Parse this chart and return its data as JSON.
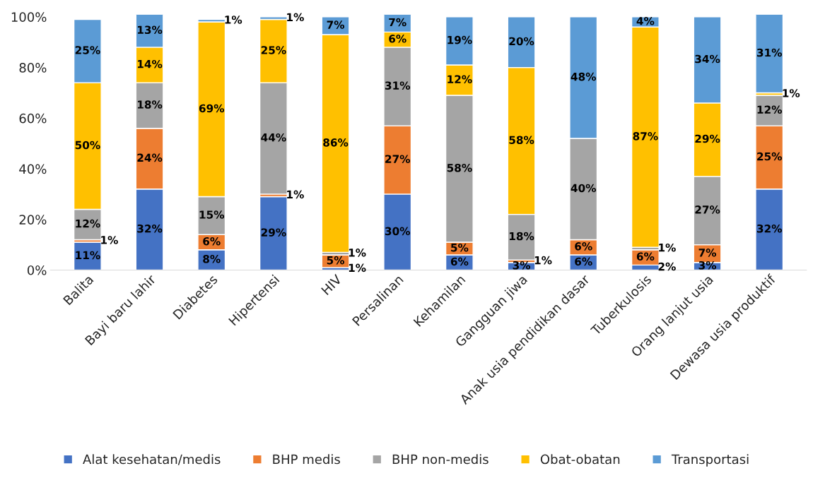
{
  "chart_data": {
    "type": "bar",
    "stacked": true,
    "categories": [
      "Balita",
      "Bayi baru lahir",
      "Diabetes",
      "Hipertensi",
      "HIV",
      "Persalinan",
      "Kehamilan",
      "Gangguan jiwa",
      "Anak usia pendidikan dasar",
      "Tuberkulosis",
      "Orang lanjut usia",
      "Dewasa usia produktif"
    ],
    "series": [
      {
        "name": "Alat kesehatan/medis",
        "color": "#4472c4",
        "values": [
          11,
          32,
          8,
          29,
          1,
          30,
          6,
          3,
          6,
          2,
          3,
          32
        ],
        "value_labels": [
          "11%",
          "32%",
          "8%",
          "29%",
          "1%",
          "30%",
          "6%",
          "3%",
          "6%",
          "2%",
          "3%",
          "32%"
        ]
      },
      {
        "name": "BHP medis",
        "color": "#ed7d31",
        "values": [
          1,
          24,
          6,
          1,
          5,
          27,
          5,
          1,
          6,
          6,
          7,
          25
        ],
        "value_labels": [
          "1%",
          "24%",
          "6%",
          "1%",
          "5%",
          "27%",
          "5%",
          "1%",
          "6%",
          "6%",
          "7%",
          "25%"
        ]
      },
      {
        "name": "BHP non-medis",
        "color": "#a5a5a5",
        "values": [
          12,
          18,
          15,
          44,
          1,
          31,
          58,
          18,
          40,
          1,
          27,
          12
        ],
        "value_labels": [
          "12%",
          "18%",
          "15%",
          "44%",
          "1%",
          "31%",
          "58%",
          "18%",
          "40%",
          "1%",
          "27%",
          "12%"
        ]
      },
      {
        "name": "Obat-obatan",
        "color": "#ffc000",
        "values": [
          50,
          14,
          69,
          25,
          86,
          6,
          12,
          58,
          0,
          87,
          29,
          1
        ],
        "value_labels": [
          "50%",
          "14%",
          "69%",
          "25%",
          "86%",
          "6%",
          "12%",
          "58%",
          null,
          "87%",
          "29%",
          "1%"
        ]
      },
      {
        "name": "Transportasi",
        "color": "#5b9bd5",
        "values": [
          25,
          13,
          1,
          1,
          7,
          7,
          19,
          20,
          48,
          4,
          34,
          31
        ],
        "value_labels": [
          "25%",
          "13%",
          "1%",
          "1%",
          "7%",
          "7%",
          "19%",
          "20%",
          "48%",
          "4%",
          "34%",
          "31%"
        ]
      }
    ],
    "ylim": [
      0,
      101
    ],
    "yticks": [
      {
        "value": 0,
        "label": "0%"
      },
      {
        "value": 20,
        "label": "20%"
      },
      {
        "value": 40,
        "label": "40%"
      },
      {
        "value": 60,
        "label": "60%"
      },
      {
        "value": 80,
        "label": "80%"
      },
      {
        "value": 100,
        "label": "100%"
      }
    ],
    "grid": false,
    "legend": "bottom"
  }
}
